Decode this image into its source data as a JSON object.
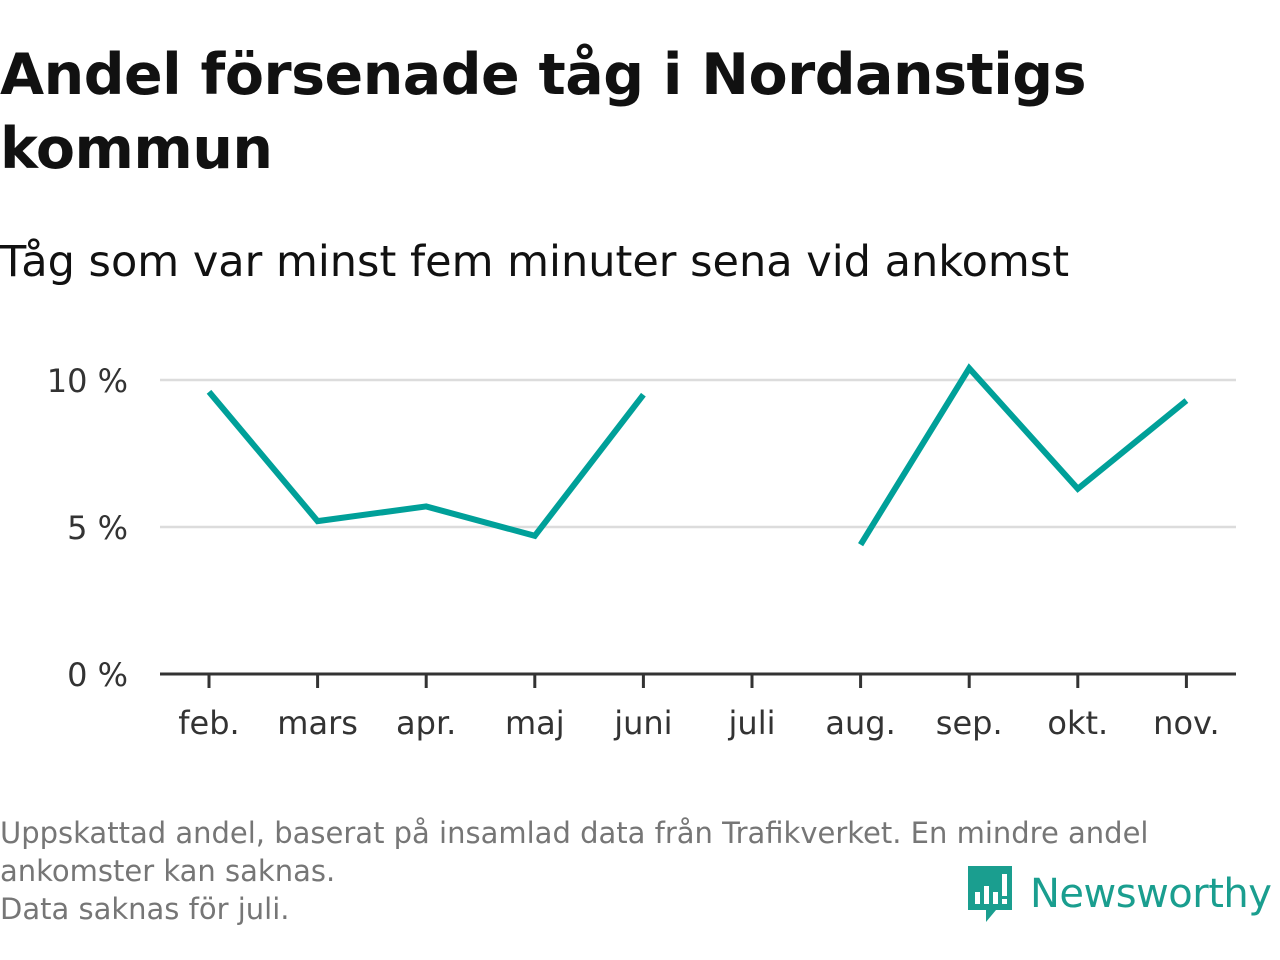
{
  "header": {
    "title": "Andel försenade tåg i Nordanstigs kommun",
    "subtitle": "Tåg som var minst fem minuter sena vid ankomst"
  },
  "chart_data": {
    "type": "line",
    "categories": [
      "feb.",
      "mars",
      "apr.",
      "maj",
      "juni",
      "juli",
      "aug.",
      "sep.",
      "okt.",
      "nov."
    ],
    "series": [
      {
        "values": [
          9.6,
          5.2,
          5.7,
          4.7,
          9.5,
          null,
          4.4,
          10.4,
          6.3,
          9.3
        ]
      }
    ],
    "ylim": [
      0,
      10.5
    ],
    "yticks": [
      0,
      5,
      10
    ],
    "ytick_labels": [
      "0 %",
      "5 %",
      "10 %"
    ],
    "grid": true,
    "line_color": "#00a099"
  },
  "footnote": {
    "line1": "Uppskattad andel, baserat på insamlad data från Trafikverket. En mindre andel",
    "line2": "ankomster kan saknas.",
    "line3": "Data saknas för juli."
  },
  "brand": {
    "name": "Newsworthy",
    "icon": "newsworthy-logo-icon",
    "color": "#1a9e8f"
  }
}
